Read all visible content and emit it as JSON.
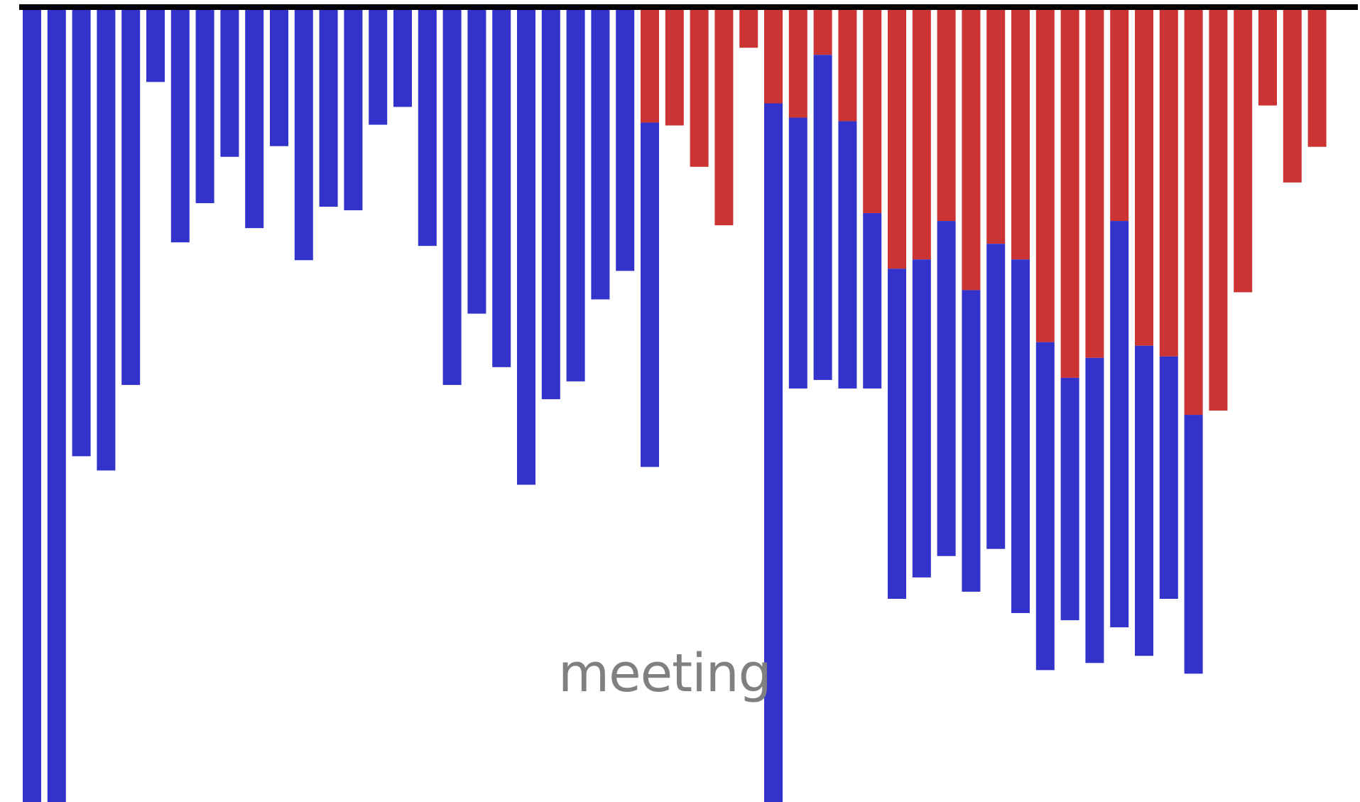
{
  "chart_data": {
    "type": "bar",
    "label": "meeting",
    "colors": {
      "first": "#3333cc",
      "second": "#cc3333",
      "baseline": "#000000",
      "label": "#808080"
    },
    "series": [
      {
        "color_key": "first",
        "values": [
          1115,
          1115,
          630,
          650,
          530,
          105,
          330,
          275,
          210,
          310,
          195,
          355,
          280,
          285,
          165,
          140,
          335,
          530,
          430,
          505,
          670,
          550,
          525,
          410,
          370,
          645,
          0,
          0,
          0,
          0,
          1115,
          535,
          523,
          535,
          535,
          830,
          800,
          770,
          820,
          760,
          850,
          930,
          860,
          920,
          870,
          910,
          830,
          935,
          0,
          0,
          0,
          0,
          0
        ]
      },
      {
        "color_key": "second",
        "values": [
          0,
          0,
          0,
          0,
          0,
          0,
          0,
          0,
          0,
          0,
          0,
          0,
          0,
          0,
          0,
          0,
          0,
          0,
          0,
          0,
          0,
          0,
          0,
          0,
          0,
          162,
          166,
          224,
          306,
          57,
          135,
          155,
          67,
          160,
          289,
          367,
          354,
          300,
          397,
          332,
          354,
          470,
          520,
          492,
          300,
          475,
          490,
          572,
          566,
          400,
          138,
          246,
          196
        ]
      }
    ],
    "ylim": [
      0,
      1115
    ]
  }
}
